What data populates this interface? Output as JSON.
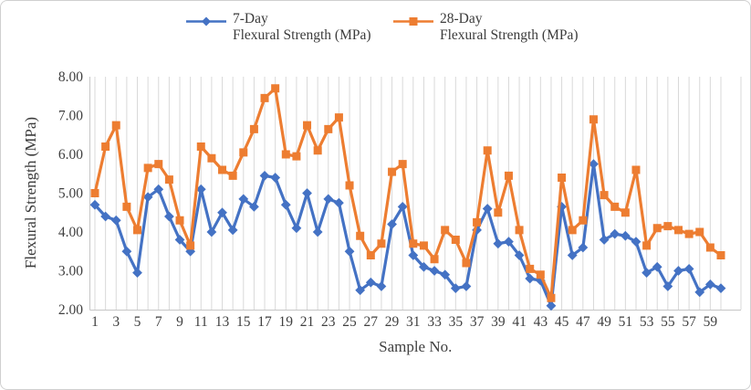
{
  "legend": [
    {
      "label_line1": "7-Day",
      "label_line2": "Flexural Strength (MPa)",
      "color": "#4472C4",
      "marker": "diamond"
    },
    {
      "label_line1": "28-Day",
      "label_line2": "Flexural Strength (MPa)",
      "color": "#ED7D31",
      "marker": "square"
    }
  ],
  "y_axis": {
    "title": "Flexural Strength (MPa)",
    "min": 2,
    "max": 8,
    "step": 1,
    "tick_labels": [
      "2.00",
      "3.00",
      "4.00",
      "5.00",
      "6.00",
      "7.00",
      "8.00"
    ]
  },
  "x_axis": {
    "title": "Sample No.",
    "tick_start": 1,
    "tick_step": 2,
    "tick_end": 59
  },
  "colors": {
    "series_7day": "#4472C4",
    "series_28day": "#ED7D31",
    "gridline": "#d9d9d9",
    "axis": "#c6c6c6",
    "text": "#3f3f3f"
  },
  "chart_data": {
    "type": "line",
    "x_label": "Sample No.",
    "y_label": "Flexural Strength (MPa)",
    "x": [
      1,
      2,
      3,
      4,
      5,
      6,
      7,
      8,
      9,
      10,
      11,
      12,
      13,
      14,
      15,
      16,
      17,
      18,
      19,
      20,
      21,
      22,
      23,
      24,
      25,
      26,
      27,
      28,
      29,
      30,
      31,
      32,
      33,
      34,
      35,
      36,
      37,
      38,
      39,
      40,
      41,
      42,
      43,
      44,
      45,
      46,
      47,
      48,
      49,
      50,
      51,
      52,
      53,
      54,
      55,
      56,
      57,
      58,
      59,
      60
    ],
    "ylim": [
      2,
      8
    ],
    "grid": "vertical-only",
    "legend_position": "top",
    "series": [
      {
        "name": "7-Day Flexural Strength (MPa)",
        "color": "#4472C4",
        "marker": "diamond",
        "values": [
          4.7,
          4.4,
          4.3,
          3.5,
          2.95,
          4.9,
          5.1,
          4.4,
          3.8,
          3.5,
          5.1,
          4.0,
          4.5,
          4.05,
          4.85,
          4.65,
          5.45,
          5.4,
          4.7,
          4.1,
          5.0,
          4.0,
          4.85,
          4.75,
          3.5,
          2.5,
          2.7,
          2.6,
          4.2,
          4.65,
          3.4,
          3.1,
          3.0,
          2.9,
          2.55,
          2.6,
          4.05,
          4.6,
          3.7,
          3.75,
          3.4,
          2.8,
          2.75,
          2.1,
          4.65,
          3.4,
          3.6,
          5.75,
          3.8,
          3.95,
          3.9,
          3.75,
          2.95,
          3.1,
          2.6,
          3.0,
          3.05,
          2.45,
          2.65,
          2.55
        ]
      },
      {
        "name": "28-Day Flexural Strength (MPa)",
        "color": "#ED7D31",
        "marker": "square",
        "values": [
          5.0,
          6.2,
          6.75,
          4.65,
          4.05,
          5.65,
          5.75,
          5.35,
          4.3,
          3.65,
          6.2,
          5.9,
          5.6,
          5.45,
          6.05,
          6.65,
          7.45,
          7.7,
          6.0,
          5.95,
          6.75,
          6.1,
          6.65,
          6.95,
          5.2,
          3.9,
          3.4,
          3.7,
          5.55,
          5.75,
          3.7,
          3.65,
          3.3,
          4.05,
          3.8,
          3.2,
          4.25,
          6.1,
          4.5,
          5.45,
          4.05,
          3.05,
          2.9,
          2.3,
          5.4,
          4.05,
          4.3,
          6.9,
          4.95,
          4.65,
          4.5,
          5.6,
          3.65,
          4.1,
          4.15,
          4.05,
          3.95,
          4.0,
          3.6,
          3.4
        ]
      }
    ]
  }
}
